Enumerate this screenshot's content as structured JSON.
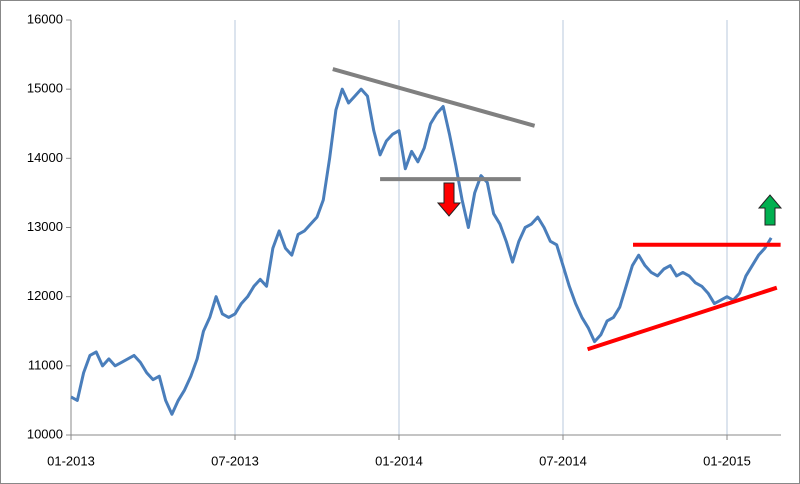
{
  "chart_data": {
    "type": "line",
    "categories": [
      "01-2013",
      null,
      null,
      null,
      null,
      null,
      null,
      null,
      null,
      null,
      null,
      null,
      null,
      null,
      null,
      null,
      null,
      null,
      null,
      null,
      null,
      null,
      null,
      null,
      null,
      null,
      "07-2013",
      null,
      null,
      null,
      null,
      null,
      null,
      null,
      null,
      null,
      null,
      null,
      null,
      null,
      null,
      null,
      null,
      null,
      null,
      null,
      null,
      null,
      null,
      null,
      null,
      null,
      "01-2014",
      null,
      null,
      null,
      null,
      null,
      null,
      null,
      null,
      null,
      null,
      null,
      null,
      null,
      null,
      null,
      null,
      null,
      null,
      null,
      null,
      null,
      null,
      null,
      null,
      null,
      "07-2014",
      null,
      null,
      null,
      null,
      null,
      null,
      null,
      null,
      null,
      null,
      null,
      null,
      null,
      null,
      null,
      null,
      null,
      null,
      null,
      null,
      null,
      null,
      null,
      null,
      null,
      "01-2015",
      null,
      null,
      null,
      null,
      null,
      null,
      null
    ],
    "values": [
      10550,
      10500,
      10900,
      11150,
      11200,
      11000,
      11100,
      11000,
      11050,
      11100,
      11150,
      11050,
      10900,
      10800,
      10850,
      10500,
      10300,
      10500,
      10650,
      10850,
      11100,
      11500,
      11700,
      12000,
      11750,
      11700,
      11750,
      11900,
      12000,
      12150,
      12250,
      12150,
      12700,
      12950,
      12700,
      12600,
      12900,
      12950,
      13050,
      13150,
      13400,
      14000,
      14700,
      15000,
      14800,
      14900,
      15000,
      14900,
      14400,
      14050,
      14250,
      14350,
      14400,
      13850,
      14100,
      13950,
      14150,
      14500,
      14650,
      14750,
      14350,
      13900,
      13400,
      13000,
      13500,
      13750,
      13650,
      13200,
      13050,
      12800,
      12500,
      12800,
      13000,
      13050,
      13150,
      13000,
      12800,
      12750,
      12450,
      12150,
      11900,
      11700,
      11550,
      11350,
      11450,
      11650,
      11700,
      11850,
      12150,
      12450,
      12600,
      12450,
      12350,
      12300,
      12400,
      12450,
      12300,
      12350,
      12300,
      12200,
      12150,
      12050,
      11900,
      11950,
      12000,
      11950,
      12050,
      12300,
      12450,
      12600,
      12700,
      12850
    ],
    "color": "#4a7ebb",
    "ylim": [
      10000,
      16000
    ],
    "yticks": [
      10000,
      11000,
      12000,
      13000,
      14000,
      15000,
      16000
    ],
    "grid": true,
    "trendlines": [
      {
        "color": "#808080",
        "from": [
          41.5,
          15290
        ],
        "to": [
          73.5,
          14470
        ]
      },
      {
        "color": "#808080",
        "from": [
          49,
          13700
        ],
        "to": [
          71.3,
          13700
        ]
      },
      {
        "color": "#ff0000",
        "from": [
          89.1,
          12750
        ],
        "to": [
          112.5,
          12750
        ]
      },
      {
        "color": "#ff0000",
        "from": [
          81.9,
          11240
        ],
        "to": [
          111.9,
          12130
        ]
      }
    ]
  }
}
